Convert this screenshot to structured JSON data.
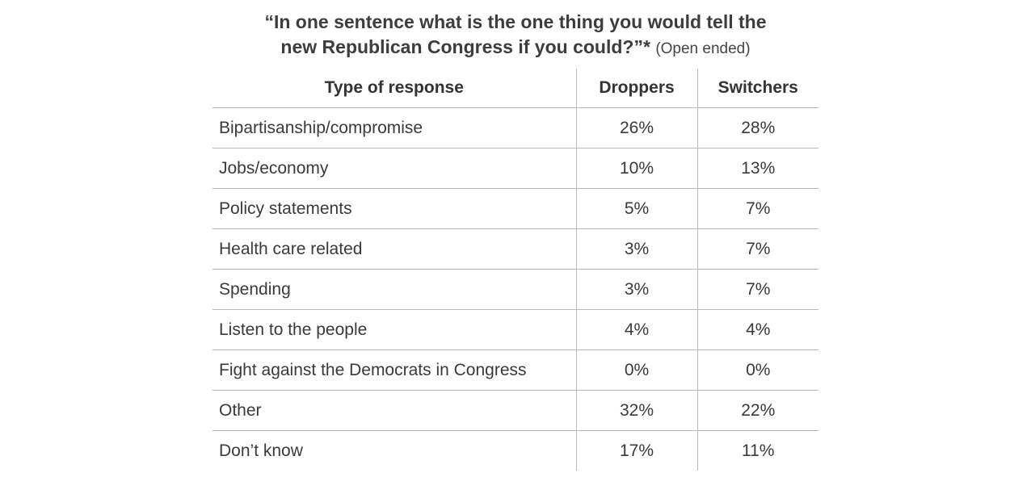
{
  "chart_data": {
    "type": "table",
    "title_line1": "“In one sentence what is the one thing you would tell the",
    "title_line2": "new Republican Congress if you could?”*",
    "title_note": "(Open ended)",
    "columns": [
      "Type of response",
      "Droppers",
      "Switchers"
    ],
    "rows": [
      {
        "label": "Bipartisanship/compromise",
        "droppers": "26%",
        "switchers": "28%"
      },
      {
        "label": "Jobs/economy",
        "droppers": "10%",
        "switchers": "13%"
      },
      {
        "label": "Policy statements",
        "droppers": "5%",
        "switchers": "7%"
      },
      {
        "label": "Health care related",
        "droppers": "3%",
        "switchers": "7%"
      },
      {
        "label": "Spending",
        "droppers": "3%",
        "switchers": "7%"
      },
      {
        "label": "Listen to the people",
        "droppers": "4%",
        "switchers": "4%"
      },
      {
        "label": "Fight against the Democrats in Congress",
        "droppers": "0%",
        "switchers": "0%"
      },
      {
        "label": "Other",
        "droppers": "32%",
        "switchers": "22%"
      },
      {
        "label": "Don’t know",
        "droppers": "17%",
        "switchers": "11%"
      }
    ]
  }
}
